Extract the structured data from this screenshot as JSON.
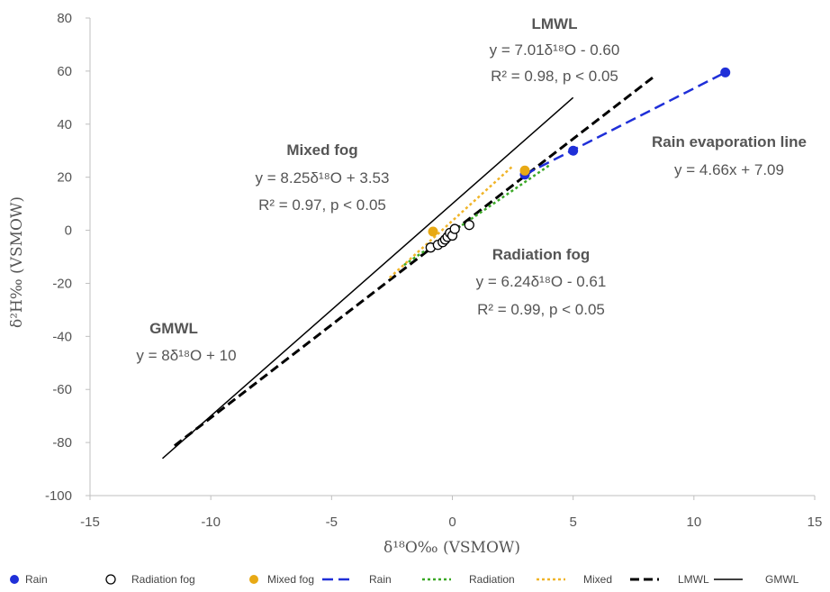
{
  "chart_data": {
    "type": "scatter",
    "xlabel": "δ¹⁸O‰ (VSMOW)",
    "ylabel": "δ²H‰ (VSMOW)",
    "xlim": [
      -15,
      15
    ],
    "ylim": [
      -100,
      80
    ],
    "xticks": [
      -15,
      -10,
      -5,
      0,
      5,
      10,
      15
    ],
    "yticks": [
      -100,
      -80,
      -60,
      -40,
      -20,
      0,
      20,
      40,
      60,
      80
    ],
    "xtick_labels": [
      "-15",
      "-10",
      "-5",
      "0",
      "5",
      "10",
      "15"
    ],
    "ytick_labels": [
      "-100",
      "-80",
      "-60",
      "-40",
      "-20",
      "0",
      "20",
      "40",
      "60",
      "80"
    ],
    "grid": false,
    "legend_position": "bottom",
    "points": [
      {
        "name": "Rain",
        "marker": "filled-circle",
        "color": "#1f2fd8",
        "x": [
          3.0,
          5.0,
          11.3
        ],
        "y": [
          21.0,
          30.0,
          59.5
        ]
      },
      {
        "name": "Radiation fog",
        "marker": "open-circle",
        "color": "#000000",
        "x": [
          -0.9,
          -0.6,
          -0.4,
          -0.3,
          -0.2,
          -0.1,
          0.0,
          0.1,
          0.7
        ],
        "y": [
          -6.5,
          -5.5,
          -4.5,
          -3.5,
          -2.5,
          -1.0,
          -2.0,
          0.5,
          2.0
        ]
      },
      {
        "name": "Mixed fog",
        "marker": "filled-circle",
        "color": "#e8a914",
        "x": [
          -0.8,
          3.0
        ],
        "y": [
          -0.5,
          22.5
        ]
      }
    ],
    "lines": [
      {
        "name": "Rain",
        "style": "dashed",
        "color": "#1f2fd8",
        "x": [
          3.0,
          11.3
        ],
        "y": [
          21.0,
          59.5
        ]
      },
      {
        "name": "Radiation",
        "style": "dotted",
        "color": "#3aa826",
        "x": [
          -2.0,
          4.0
        ],
        "y": [
          -13.1,
          24.4
        ]
      },
      {
        "name": "Mixed",
        "style": "dotted",
        "color": "#f0b428",
        "x": [
          -2.6,
          2.5
        ],
        "y": [
          -17.9,
          24.2
        ]
      },
      {
        "name": "LMWL",
        "style": "dashed-bold",
        "color": "#000000",
        "x": [
          -11.5,
          8.3
        ],
        "y": [
          -81.2,
          57.6
        ]
      },
      {
        "name": "GMWL",
        "style": "solid",
        "color": "#000000",
        "x": [
          -12.0,
          5.0
        ],
        "y": [
          -86.0,
          50.0
        ]
      }
    ],
    "annotations": [
      {
        "title": "LMWL",
        "lines": [
          "y = 7.01δ¹⁸O - 0.60",
          "R² = 0.98, p < 0.05"
        ]
      },
      {
        "title": "Mixed fog",
        "lines": [
          "y = 8.25δ¹⁸O + 3.53",
          "R² = 0.97, p < 0.05"
        ]
      },
      {
        "title": "Rain evaporation line",
        "lines": [
          "y = 4.66x + 7.09"
        ]
      },
      {
        "title": "Radiation fog",
        "lines": [
          "y = 6.24δ¹⁸O - 0.61",
          "R² = 0.99, p < 0.05"
        ]
      },
      {
        "title": "GMWL",
        "lines": [
          "y = 8δ¹⁸O + 10"
        ]
      }
    ],
    "legend": [
      {
        "label": "Rain",
        "kind": "filled-circle",
        "color": "#1f2fd8"
      },
      {
        "label": "Radiation fog",
        "kind": "open-circle",
        "color": "#000000"
      },
      {
        "label": "Mixed fog",
        "kind": "filled-circle",
        "color": "#e8a914"
      },
      {
        "label": "Rain",
        "kind": "dashed",
        "color": "#1f2fd8"
      },
      {
        "label": "Radiation",
        "kind": "dotted",
        "color": "#3aa826"
      },
      {
        "label": "Mixed",
        "kind": "dotted",
        "color": "#f0b428"
      },
      {
        "label": "LMWL",
        "kind": "dashed-bold",
        "color": "#000000"
      },
      {
        "label": "GMWL",
        "kind": "solid",
        "color": "#000000"
      }
    ]
  }
}
